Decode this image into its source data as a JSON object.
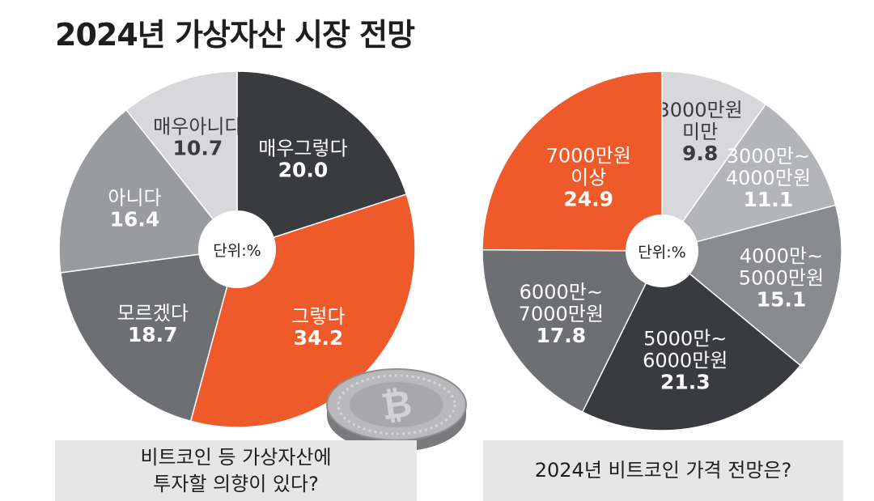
{
  "title": "2024년 가상자산 시장 전망",
  "charts": {
    "left_caption": "비트코인 등 가상자산에\n투자할 의향이 있다?",
    "right_caption": "2024년 비트코인 가격 전망은?",
    "unit_label": "단위:%"
  },
  "colors": {
    "dark": "#3a3b3f",
    "orange": "#ef5a2a",
    "mid_gray": "#6e6f73",
    "light_gray": "#9a9b9e",
    "pale_gray": "#d8d8da",
    "caption_bg": "#e6e6e6"
  },
  "chart_data": [
    {
      "type": "pie",
      "title": "비트코인 등 가상자산에 투자할 의향이 있다?",
      "unit": "단위:%",
      "slices": [
        {
          "label": "매우그렇다",
          "value": 20.0,
          "value_text": "20.0",
          "color": "#3a3b3f"
        },
        {
          "label": "그렇다",
          "value": 34.2,
          "value_text": "34.2",
          "color": "#ef5a2a"
        },
        {
          "label": "모르겠다",
          "value": 18.7,
          "value_text": "18.7",
          "color": "#6e6f73"
        },
        {
          "label": "아니다",
          "value": 16.4,
          "value_text": "16.4",
          "color": "#9a9b9e"
        },
        {
          "label": "매우아니다",
          "value": 10.7,
          "value_text": "10.7",
          "color": "#d8d8da"
        }
      ]
    },
    {
      "type": "pie",
      "title": "2024년 비트코인 가격 전망은?",
      "unit": "단위:%",
      "slices": [
        {
          "label": "3000만원\n미만",
          "value": 9.8,
          "value_text": "9.8",
          "color": "#d8d8da"
        },
        {
          "label": "3000만~\n4000만원",
          "value": 11.1,
          "value_text": "11.1",
          "color": "#b4b5b8"
        },
        {
          "label": "4000만~\n5000만원",
          "value": 15.1,
          "value_text": "15.1",
          "color": "#8a8b8e"
        },
        {
          "label": "5000만~\n6000만원",
          "value": 21.3,
          "value_text": "21.3",
          "color": "#3a3b3f"
        },
        {
          "label": "6000만~\n7000만원",
          "value": 17.8,
          "value_text": "17.8",
          "color": "#6e6f73"
        },
        {
          "label": "7000만원\n이상",
          "value": 24.9,
          "value_text": "24.9",
          "color": "#ef5a2a"
        }
      ]
    }
  ]
}
